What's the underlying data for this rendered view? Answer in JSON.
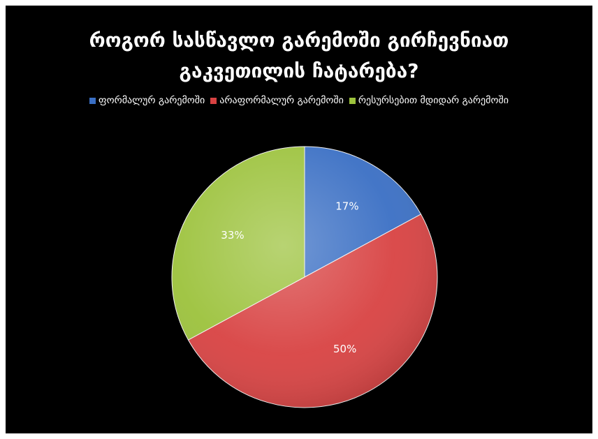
{
  "chart_data": {
    "type": "pie",
    "title_lines": [
      "როგორ სასწავლო გარემოში გირჩევნიათ",
      "გაკვეთილის  ჩატარება?"
    ],
    "categories": [
      "ფორმალურ გარემოში",
      "არაფორმალურ გარემოში",
      "რესურსებით მდიდარ გარემოში"
    ],
    "values": [
      17,
      50,
      33
    ],
    "data_labels": [
      "17%",
      "50%",
      "33%"
    ],
    "colors": [
      "#3a6fc4",
      "#d84242",
      "#9cc23c"
    ],
    "legend_position": "top"
  }
}
